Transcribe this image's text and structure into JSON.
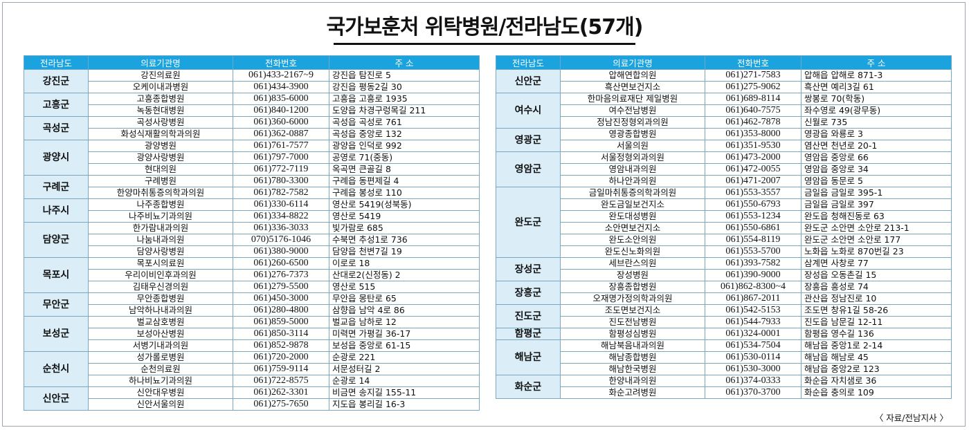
{
  "title": "국가보훈처 위탁병원/전라남도(57개)",
  "source": "〈 자료/전남지사 〉",
  "headers": [
    "전라남도",
    "의료기관명",
    "전화번호",
    "주 소"
  ],
  "left": [
    {
      "region": "강진군",
      "rows": [
        [
          "강진의료원",
          "061)433-2167~9",
          "강진읍 탐진로 5"
        ],
        [
          "오케이내과병원",
          "061)434-3900",
          "강진읍 평동2길 30"
        ]
      ]
    },
    {
      "region": "고흥군",
      "rows": [
        [
          "고흥종합병원",
          "061)835-6000",
          "고흥읍 고흥로 1935"
        ],
        [
          "녹동현대병원",
          "061)840-1200",
          "도양읍 차경구렁목길 211"
        ]
      ]
    },
    {
      "region": "곡성군",
      "rows": [
        [
          "곡성사랑병원",
          "061)360-6000",
          "곡성읍 곡성로 761"
        ],
        [
          "화성식재활의학과의원",
          "061)362-0887",
          "곡성읍 중앙로 132"
        ]
      ]
    },
    {
      "region": "광양시",
      "rows": [
        [
          "광양병원",
          "061)761-7577",
          "광양읍 인덕로 992"
        ],
        [
          "광양사랑병원",
          "061)797-7000",
          "공영로 71(중동)"
        ],
        [
          "현대의원",
          "061)772-7119",
          "옥곡면 큰골길 8"
        ]
      ]
    },
    {
      "region": "구례군",
      "rows": [
        [
          "구례병원",
          "061)780-3300",
          "구례읍 동편제길 4"
        ],
        [
          "한양마취통증의학과의원",
          "061)782-7582",
          "구례읍 봉성로 110"
        ]
      ]
    },
    {
      "region": "나주시",
      "rows": [
        [
          "나주종합병원",
          "061)330-6114",
          "영산로 5419(성북동)"
        ],
        [
          "나주비뇨기과의원",
          "061)334-8822",
          "영산로 5419"
        ]
      ]
    },
    {
      "region": "담양군",
      "rows": [
        [
          "한가람내과의원",
          "061)336-3033",
          "빛가람로 685"
        ],
        [
          "나눔내과의원",
          "070)5176-1046",
          "수북면 추성1로 736"
        ],
        [
          "담양사랑병원",
          "061)380-9000",
          "담양읍 천변7길 19"
        ]
      ]
    },
    {
      "region": "목포시",
      "rows": [
        [
          "목포시의료원",
          "061)260-6500",
          "이로로 18"
        ],
        [
          "우리이비인후과의원",
          "061)276-7373",
          "산대로2(신정동) 2"
        ],
        [
          "김태우신경의원",
          "061)279-5500",
          "영산로 515"
        ]
      ]
    },
    {
      "region": "무안군",
      "rows": [
        [
          "무안종합병원",
          "061)450-3000",
          "무안읍 몽탄로 65"
        ],
        [
          "남악하나내과의원",
          "061)280-4800",
          "삼향읍 남악 4로 86"
        ]
      ]
    },
    {
      "region": "보성군",
      "rows": [
        [
          "벌교삼호병원",
          "061)859-5000",
          "벌교읍 남하로 12"
        ],
        [
          "보성아산병원",
          "061)850-3114",
          "미력면 가평길 36-17"
        ],
        [
          "서병기내과의원",
          "061)852-9878",
          "보성읍 중앙로 61-15"
        ]
      ]
    },
    {
      "region": "순천시",
      "rows": [
        [
          "성가롤로병원",
          "061)720-2000",
          "순광로 221"
        ],
        [
          "순천의료원",
          "061)759-9114",
          "서문성터길 2"
        ],
        [
          "하나비뇨기과의원",
          "061)722-8575",
          "순광로 14"
        ]
      ]
    },
    {
      "region": "신안군",
      "rows": [
        [
          "신안대우병원",
          "061)262-3301",
          "비금면 송지길 155-11"
        ],
        [
          "신안서울의원",
          "061)275-7650",
          "지도읍 봉리길 16-3"
        ]
      ]
    }
  ],
  "right": [
    {
      "region": "신안군",
      "rows": [
        [
          "압해연합의원",
          "061)271-7583",
          "압해읍 압해로 871-3"
        ],
        [
          "흑산면보건지소",
          "061)275-9062",
          "흑산면 예리3길 61"
        ]
      ]
    },
    {
      "region": "여수시",
      "rows": [
        [
          "한마음의료재단 제일병원",
          "061)689-8114",
          "쌍봉로 70(학동)"
        ],
        [
          "여수전남병원",
          "061)640-7575",
          "좌수영로 49(광무동)"
        ],
        [
          "정남진정형외과의원",
          "061)462-7878",
          "신월로 735"
        ]
      ]
    },
    {
      "region": "영광군",
      "rows": [
        [
          "영광종합병원",
          "061)353-8000",
          "영광읍 와룡로 3"
        ],
        [
          "서울의원",
          "061)351-9530",
          "염산면 천년로 20-1"
        ]
      ]
    },
    {
      "region": "영암군",
      "rows": [
        [
          "서울정형외과의원",
          "061)473-2000",
          "영암읍 중앙로 66"
        ],
        [
          "영암내과의원",
          "061)472-0055",
          "영암읍 중앙로 34"
        ],
        [
          "하나안과의원",
          "061)471-2007",
          "영암읍 동문로 5"
        ]
      ]
    },
    {
      "region": "완도군",
      "rows": [
        [
          "금일마취통증의학과의원",
          "061)553-3557",
          "금일읍 금일로 395-1"
        ],
        [
          "완도금일보건지소",
          "061)550-6793",
          "금일읍 금일로 397"
        ],
        [
          "완도대성병원",
          "061)553-1234",
          "완도읍 청해진동로 63"
        ],
        [
          "소안면보건지소",
          "061)550-6861",
          "완도군 소안면 소안로 213-1"
        ],
        [
          "완도소안의원",
          "061)554-8119",
          "완도군 소안면 소안로 177"
        ],
        [
          "완도신노화의원",
          "061)553-5700",
          "노화읍 노화로 870번길 23"
        ]
      ]
    },
    {
      "region": "장성군",
      "rows": [
        [
          "세브란스의원",
          "061)393-7582",
          "삼계면 사창로 77"
        ],
        [
          "장성병원",
          "061)390-9000",
          "장성읍 오동촌길 15"
        ]
      ]
    },
    {
      "region": "장흥군",
      "rows": [
        [
          "장흥종합병원",
          "061)862-8300~4",
          "장흥읍 흥성로 74"
        ],
        [
          "오재명가정의학과의원",
          "061)867-2011",
          "관산읍 정남진로 10"
        ]
      ]
    },
    {
      "region": "진도군",
      "rows": [
        [
          "조도면보건지소",
          "061)542-5153",
          "조도면 창유1길 58-26"
        ],
        [
          "진도전남병원",
          "061)544-7933",
          "진도읍 남문길 12-11"
        ]
      ]
    },
    {
      "region": "함평군",
      "rows": [
        [
          "함평성심병원",
          "061)324-0001",
          "함평읍 영수길 136"
        ]
      ]
    },
    {
      "region": "해남군",
      "rows": [
        [
          "해남북음내과의원",
          "061)534-7504",
          "해남읍 중앙1로 2-14"
        ],
        [
          "해남종합병원",
          "061)530-0114",
          "해남읍 해남로 45"
        ],
        [
          "해남한국병원",
          "061)530-3000",
          "해남읍 중앙2로 123"
        ]
      ]
    },
    {
      "region": "화순군",
      "rows": [
        [
          "한양내과의원",
          "061)374-0333",
          "화순읍 자치샘로 36"
        ],
        [
          "화순고려병원",
          "061)370-3700",
          "화순읍 충의로 109"
        ]
      ]
    }
  ]
}
